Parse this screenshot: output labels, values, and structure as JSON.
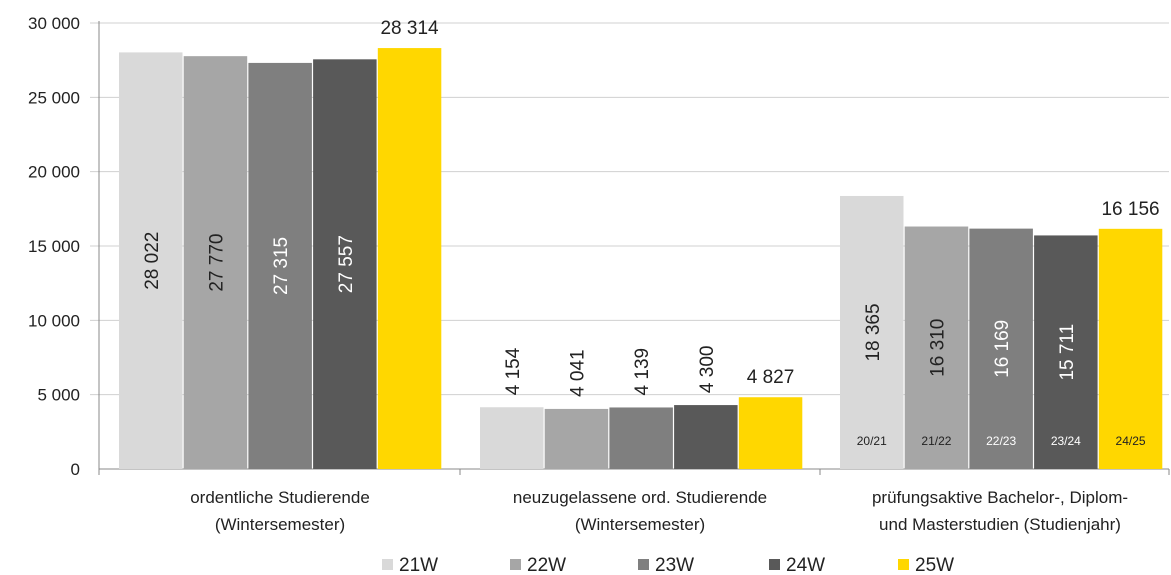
{
  "chart_data": {
    "type": "bar",
    "title": "",
    "xlabel": "",
    "ylabel": "",
    "ylim": [
      0,
      30000
    ],
    "yticks": [
      0,
      5000,
      10000,
      15000,
      20000,
      25000,
      30000
    ],
    "ytick_labels": [
      "0",
      "5 000",
      "10 000",
      "15 000",
      "20 000",
      "25 000",
      "30 000"
    ],
    "grid": "horizontal",
    "legend_position": "bottom",
    "categories": [
      [
        "ordentliche Studierende",
        "(Wintersemester)"
      ],
      [
        "neuzugelassene ord. Studierende",
        "(Wintersemester)"
      ],
      [
        "prüfungsaktive Bachelor-, Diplom-",
        "und Masterstudien (Studienjahr)"
      ]
    ],
    "series": [
      {
        "name": "21W",
        "color": "#d9d9d9",
        "label_color": "#222222",
        "values": [
          28022,
          4154,
          18365
        ],
        "labels": [
          "28 022",
          "4 154",
          "18 365"
        ]
      },
      {
        "name": "22W",
        "color": "#a6a6a6",
        "label_color": "#222222",
        "values": [
          27770,
          4041,
          16310
        ],
        "labels": [
          "27 770",
          "4 041",
          "16 310"
        ]
      },
      {
        "name": "23W",
        "color": "#7f7f7f",
        "label_color": "#ffffff",
        "values": [
          27315,
          4139,
          16169
        ],
        "labels": [
          "27 315",
          "4 139",
          "16 169"
        ]
      },
      {
        "name": "24W",
        "color": "#595959",
        "label_color": "#ffffff",
        "values": [
          27557,
          4300,
          15711
        ],
        "labels": [
          "27 557",
          "4 300",
          "15 711"
        ]
      },
      {
        "name": "25W",
        "color": "#ffd700",
        "label_color": "#222222",
        "values": [
          28314,
          4827,
          16156
        ],
        "labels": [
          "28 314",
          "4 827",
          "16 156"
        ]
      }
    ],
    "study_year_labels": [
      "20/21",
      "21/22",
      "22/23",
      "23/24",
      "24/25"
    ],
    "study_year_label_colors": [
      "#222222",
      "#222222",
      "#ffffff",
      "#ffffff",
      "#222222"
    ]
  }
}
